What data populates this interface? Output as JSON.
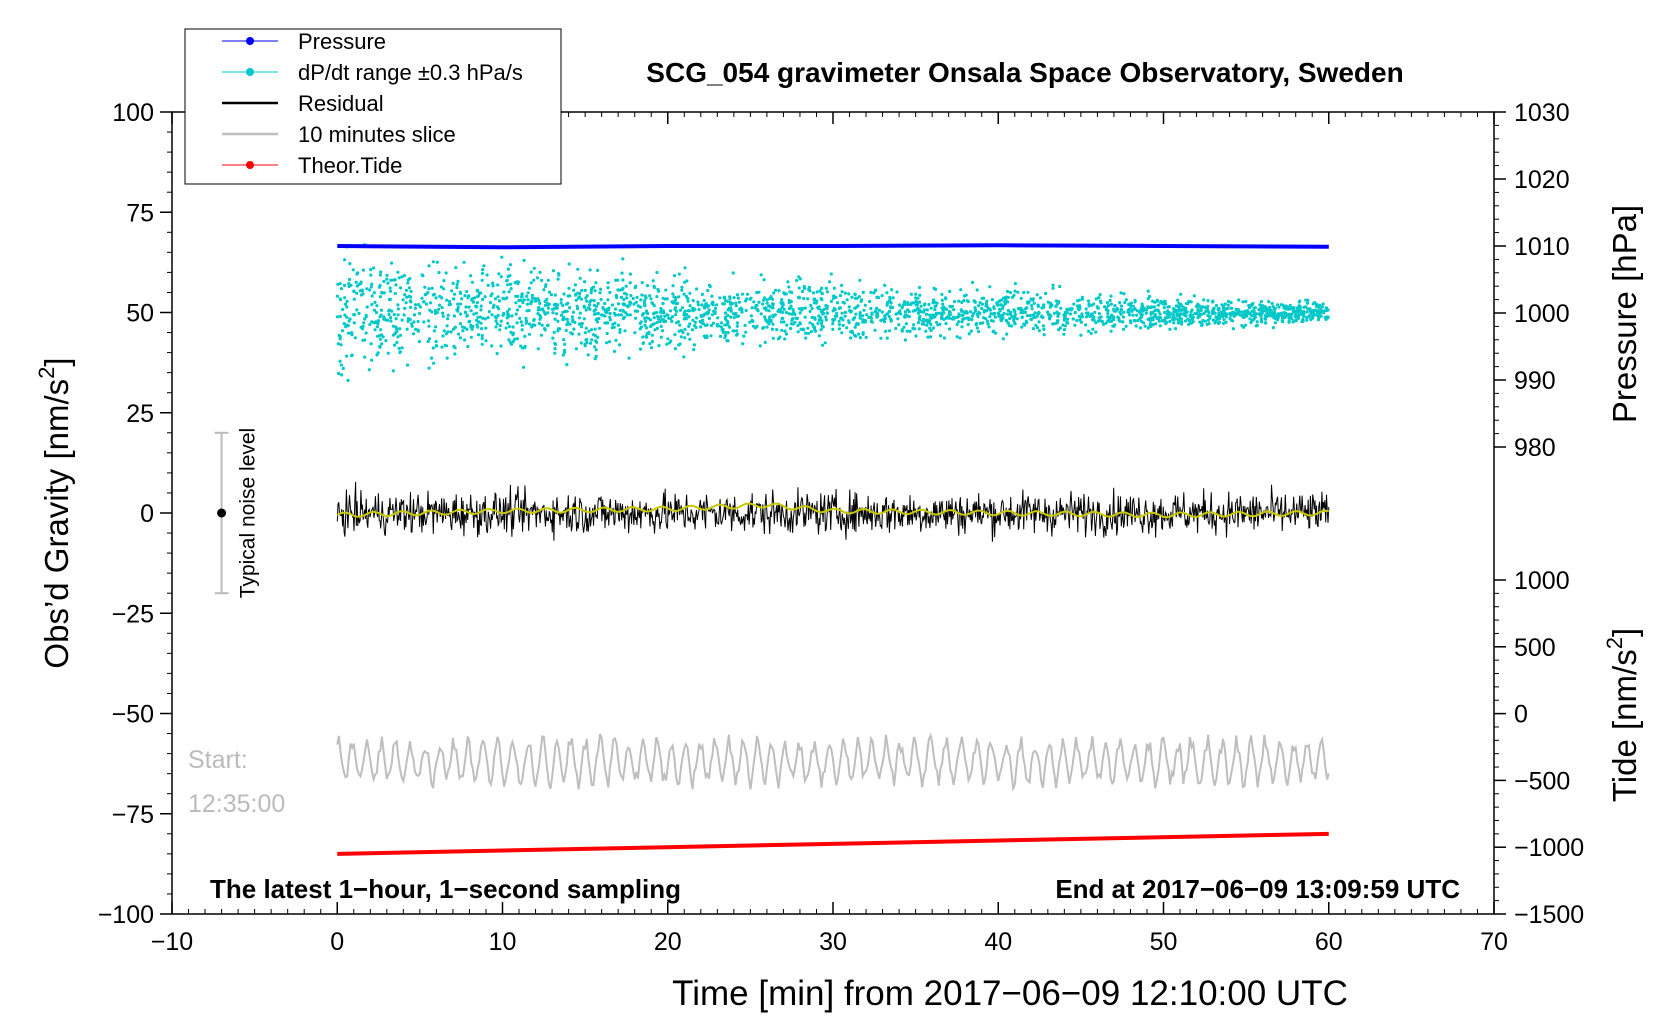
{
  "chart_data": {
    "type": "line",
    "title": "SCG_054 gravimeter Onsala Space Observatory, Sweden",
    "xlabel": "Time [min] from 2017−06−09 12:10:00 UTC",
    "ylabel_left": "Obs’d Gravity [nm/s",
    "ylabel_left_sup": "2",
    "ylabel_left_end": "]",
    "ylabel_pressure": "Pressure [hPa]",
    "ylabel_tide": "Tide [nm/s",
    "ylabel_tide_sup": "2",
    "ylabel_tide_end": "]",
    "xlim": [
      -10,
      70
    ],
    "ylim_left": [
      -100,
      100
    ],
    "ylim_pressure": [
      980,
      1030
    ],
    "ylim_tide": [
      -1500,
      1000
    ],
    "x_ticks": [
      -10,
      0,
      10,
      20,
      30,
      40,
      50,
      60,
      70
    ],
    "x_tick_labels": [
      "−10",
      "0",
      "10",
      "20",
      "30",
      "40",
      "50",
      "60",
      "70"
    ],
    "y_left_ticks": [
      100,
      75,
      50,
      25,
      0,
      -25,
      -50,
      -75,
      -100
    ],
    "y_left_tick_labels": [
      "100",
      "75",
      "50",
      "25",
      "0",
      "−25",
      "−50",
      "−75",
      "−100"
    ],
    "y_pressure_ticks": [
      1030,
      1020,
      1010,
      1000,
      990,
      980
    ],
    "y_pressure_tick_labels": [
      "1030",
      "1020",
      "1010",
      "1000",
      "990",
      "980"
    ],
    "y_tide_ticks": [
      1000,
      500,
      0,
      -500,
      -1000,
      -1500
    ],
    "y_tide_tick_labels": [
      "1000",
      "500",
      "0",
      "−500",
      "−1000",
      "−1500"
    ],
    "legend_position": "top-left",
    "legend": [
      {
        "label": "Pressure",
        "color": "#0000ff",
        "style": "line-dot"
      },
      {
        "label": "dP/dt range ±0.3 hPa/s",
        "color": "#00c8c8",
        "style": "line-dot"
      },
      {
        "label": "Residual",
        "color": "#000000",
        "style": "line"
      },
      {
        "label": "10 minutes slice",
        "color": "#bebebe",
        "style": "line"
      },
      {
        "label": "Theor.Tide",
        "color": "#ff0000",
        "style": "line-dot"
      }
    ],
    "series": [
      {
        "name": "Pressure",
        "axis": "pressure",
        "color": "#0000ff",
        "x": [
          0,
          10,
          20,
          30,
          40,
          50,
          60
        ],
        "y": [
          1010.0,
          1009.8,
          1010.0,
          1010.0,
          1010.1,
          1010.0,
          1009.9
        ]
      },
      {
        "name": "dP/dt range ±0.3 hPa/s",
        "axis": "left",
        "color": "#00c8c8",
        "center": 50,
        "spread_start": 18,
        "spread_end": 3
      },
      {
        "name": "Residual",
        "axis": "left",
        "color": "#000000",
        "center": 0,
        "amplitude": 4
      },
      {
        "name": "Smoothed residual",
        "axis": "left",
        "color": "#c8c800",
        "x": [
          0,
          10,
          20,
          26,
          30,
          40,
          50,
          60
        ],
        "y": [
          -0.5,
          0.5,
          1,
          2,
          0.5,
          0,
          -0.5,
          0
        ]
      },
      {
        "name": "10 minutes slice",
        "axis": "left",
        "color": "#bebebe",
        "center": -62,
        "amplitude": 5
      },
      {
        "name": "Theor.Tide",
        "axis": "tide",
        "color": "#ff0000",
        "x": [
          0,
          60
        ],
        "y": [
          -1050,
          -900
        ]
      }
    ],
    "noise_indicator": {
      "label": "Typical noise level",
      "x": -7,
      "center": 0,
      "range": [
        -20,
        20
      ]
    },
    "annotations": {
      "start_label": "Start:",
      "start_time": "12:35:00",
      "bottom_left": "The latest 1−hour, 1−second sampling",
      "bottom_right": "End at 2017−06−09 13:09:59 UTC"
    }
  }
}
